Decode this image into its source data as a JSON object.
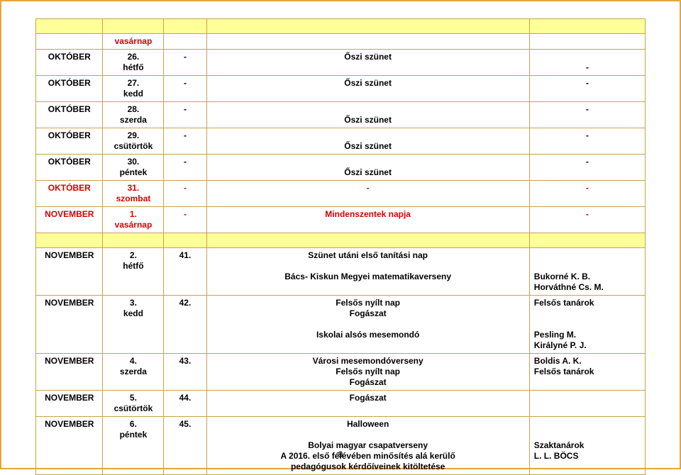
{
  "pageNumber": "9",
  "colors": {
    "border": "#c9a24a",
    "pageBorder": "#e5a63b",
    "headerBg": "#ffff99",
    "red": "#d60000",
    "black": "#000000",
    "white": "#ffffff"
  },
  "pre": {
    "month": "",
    "date": "vasárnap",
    "num": "",
    "event": "",
    "who": ""
  },
  "rows": [
    {
      "month": "OKTÓBER",
      "date_top": "26.",
      "date_bot": "hétfő",
      "num": "-",
      "event_top": "Őszi szünet",
      "event_bot": "",
      "who_lines": [
        "-"
      ],
      "red": false,
      "who_align": "center"
    },
    {
      "month": "OKTÓBER",
      "date_top": "27.",
      "date_bot": "kedd",
      "num": "-",
      "event_top": "Őszi szünet",
      "event_bot": "",
      "who_lines": [
        "-"
      ],
      "red": false,
      "who_align": "center"
    },
    {
      "month": "OKTÓBER",
      "date_top": "28.",
      "date_bot": "szerda",
      "num": "-",
      "event_top": "",
      "event_bot": "Őszi szünet",
      "who_lines": [
        "-"
      ],
      "red": false,
      "who_align": "center"
    },
    {
      "month": "OKTÓBER",
      "date_top": "29.",
      "date_bot": "csütörtök",
      "num": "-",
      "event_top": "",
      "event_bot": "Őszi szünet",
      "who_lines": [
        "-"
      ],
      "red": false,
      "who_align": "center"
    },
    {
      "month": "OKTÓBER",
      "date_top": "30.",
      "date_bot": "péntek",
      "num": "-",
      "event_top": "",
      "event_bot": "Őszi szünet",
      "who_lines": [
        "-"
      ],
      "red": false,
      "who_align": "center"
    },
    {
      "month": "OKTÓBER",
      "date_top": "31.",
      "date_bot": "szombat",
      "num": "-",
      "event_top": "-",
      "event_bot": "",
      "who_lines": [
        "-"
      ],
      "red": true,
      "who_align": "center"
    },
    {
      "month": "NOVEMBER",
      "date_top": "1.",
      "date_bot": "vasárnap",
      "num": "-",
      "event_top": "Mindenszentek napja",
      "event_bot": "",
      "who_lines": [
        "-"
      ],
      "red": true,
      "who_align": "center"
    }
  ],
  "nov2": {
    "month": "NOVEMBER",
    "date_top": "2.",
    "date_bot": "hétfő",
    "num": "41.",
    "event_l1": "Szünet utáni első tanítási nap",
    "event_l2": "Bács- Kiskun Megyei matematikaverseny",
    "who_l1": "Bukorné K. B.",
    "who_l2": "Horváthné Cs. M."
  },
  "nov3": {
    "month": "NOVEMBER",
    "date_top": "3.",
    "date_bot": "kedd",
    "num": "42.",
    "event_l1": "Felsős nyílt nap",
    "event_l2": "Fogászat",
    "event_l3": "Iskolai alsós mesemondó",
    "who_l1": "Felsős tanárok",
    "who_l2": "Pesling M.",
    "who_l3": "Királyné P. J."
  },
  "nov4": {
    "month": "NOVEMBER",
    "date_top": "4.",
    "date_bot": "szerda",
    "num": "43.",
    "event_l1": "Városi mesemondóverseny",
    "event_l2": "Felsős nyílt nap",
    "event_l3": "Fogászat",
    "who_l1": "Boldis A. K.",
    "who_l2": "Felsős tanárok"
  },
  "nov5": {
    "month": "NOVEMBER",
    "date_top": "5.",
    "date_bot": "csütörtök",
    "num": "44.",
    "event_l1": "Fogászat",
    "who_lines": [
      ""
    ]
  },
  "nov6": {
    "month": "NOVEMBER",
    "date_top": "6.",
    "date_bot": "péntek",
    "num": "45.",
    "event_l1": "Halloween",
    "event_l2": "Bolyai magyar csapatverseny",
    "event_l3": "A 2016. első félévében minősítés alá kerülő",
    "event_l4": "pedagógusok kérdőíveinek kitöltetése",
    "who_l1": "Szaktanárok",
    "who_l2": "L. L. BÖCS"
  }
}
